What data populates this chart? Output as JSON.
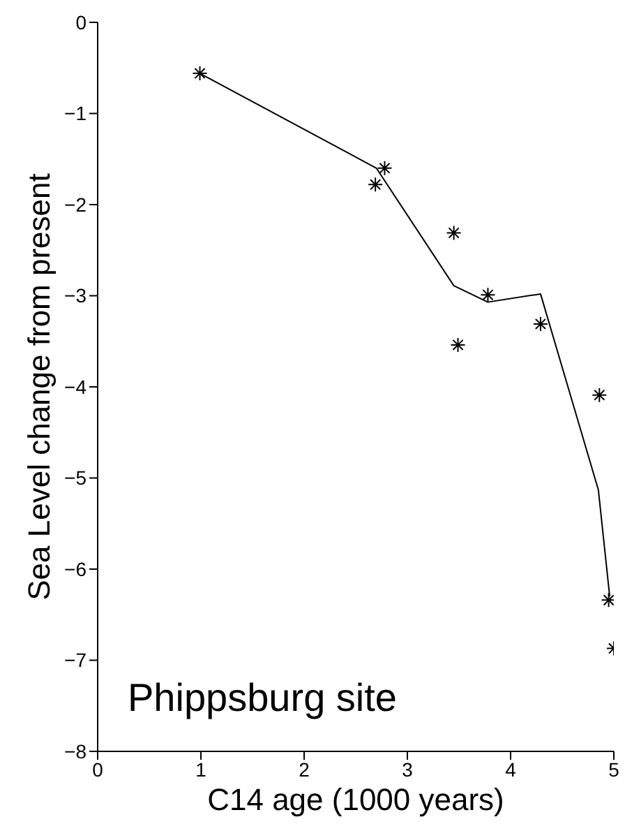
{
  "chart_data": {
    "type": "scatter",
    "xlabel": "C14 age (1000 years)",
    "ylabel": "Sea Level change from present",
    "annotations": [
      "Phippsburg site"
    ],
    "xlim": [
      0,
      5
    ],
    "xticks": [
      0,
      1,
      2,
      3,
      4,
      5
    ],
    "ylim": [
      -8,
      0
    ],
    "yticks": [
      -8,
      -7,
      -6,
      -5,
      -4,
      -3,
      -2,
      -1,
      0
    ],
    "series": [
      {
        "color": "#000000",
        "marker": "cross",
        "x": [
          0.99,
          2.69,
          2.78,
          3.45,
          3.49,
          3.78,
          4.29,
          4.86,
          4.95,
          5.0
        ],
        "values": [
          -0.56,
          -1.78,
          -1.6,
          -2.31,
          -3.54,
          -2.99,
          -3.31,
          -4.09,
          -6.34,
          -6.87
        ]
      },
      {
        "type": "line",
        "color": "#000000",
        "marker": "none",
        "line_style": "solid",
        "x": [
          0.99,
          2.7,
          3.45,
          3.78,
          4.29,
          4.85,
          4.96
        ],
        "values": [
          -0.56,
          -1.6,
          -2.89,
          -3.07,
          -2.98,
          -5.13,
          -6.3
        ]
      }
    ]
  }
}
